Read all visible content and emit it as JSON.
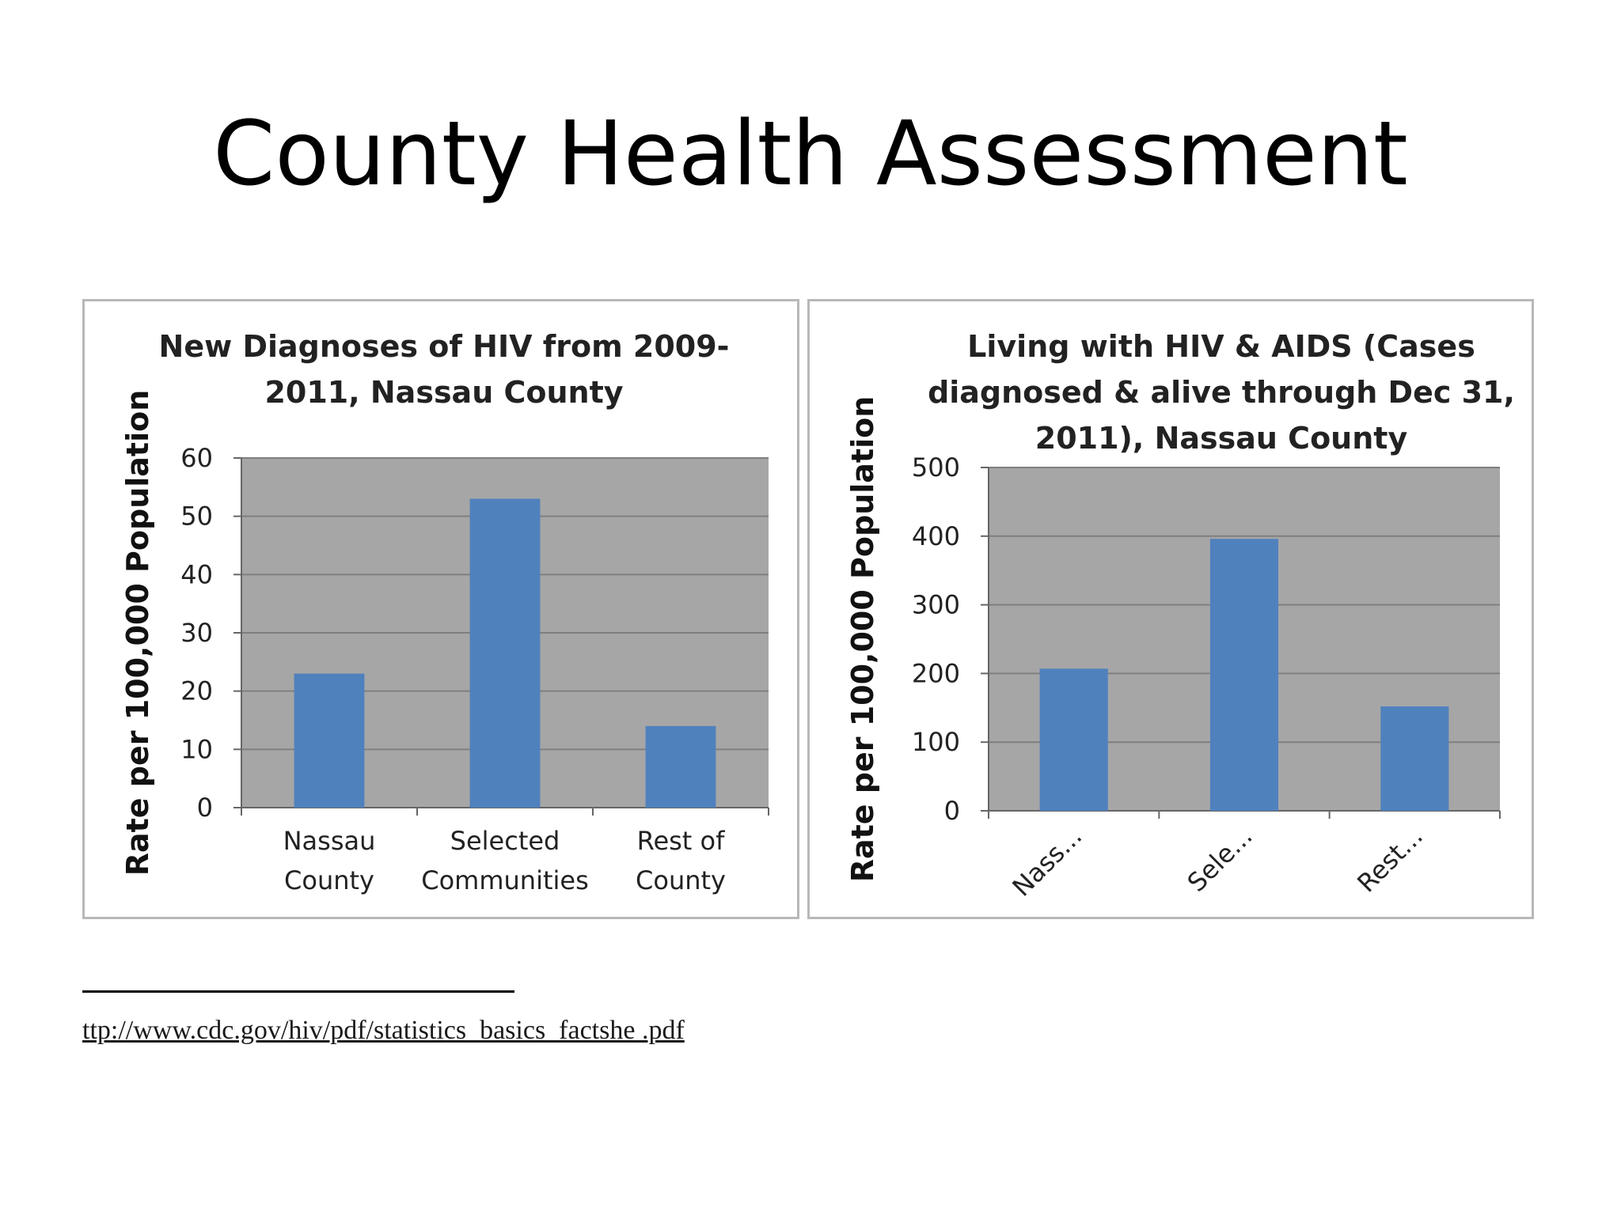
{
  "slide": {
    "title": "County Health Assessment",
    "footnote_link": "ttp://www.cdc.gov/hiv/pdf/statistics_basics_factshe .pdf"
  },
  "colors": {
    "bar": "#4f81bd",
    "plot_bg": "#a6a6a6",
    "grid": "#7f7f7f"
  },
  "chart_data": [
    {
      "type": "bar",
      "title_lines": [
        "New Diagnoses of HIV from 2009-",
        "2011, Nassau County"
      ],
      "ylabel": "Rate per 100,000 Population",
      "xlabel": "",
      "ylim": [
        0,
        60
      ],
      "yticks": [
        0,
        10,
        20,
        30,
        40,
        50,
        60
      ],
      "categories": [
        [
          "Nassau",
          "County"
        ],
        [
          "Selected",
          "Communities"
        ],
        [
          "Rest of",
          "County"
        ]
      ],
      "values": [
        23,
        53,
        14
      ],
      "grid": true,
      "legend": "none"
    },
    {
      "type": "bar",
      "title_lines": [
        "Living with HIV & AIDS (Cases",
        "diagnosed & alive through Dec 31,",
        "2011), Nassau County"
      ],
      "ylabel": "Rate per 100,000 Population",
      "xlabel": "",
      "ylim": [
        0,
        500
      ],
      "yticks": [
        0,
        100,
        200,
        300,
        400,
        500
      ],
      "categories": [
        [
          "Nass..."
        ],
        [
          "Sele..."
        ],
        [
          "Rest..."
        ]
      ],
      "values": [
        207,
        396,
        152
      ],
      "grid": true,
      "legend": "none"
    }
  ]
}
